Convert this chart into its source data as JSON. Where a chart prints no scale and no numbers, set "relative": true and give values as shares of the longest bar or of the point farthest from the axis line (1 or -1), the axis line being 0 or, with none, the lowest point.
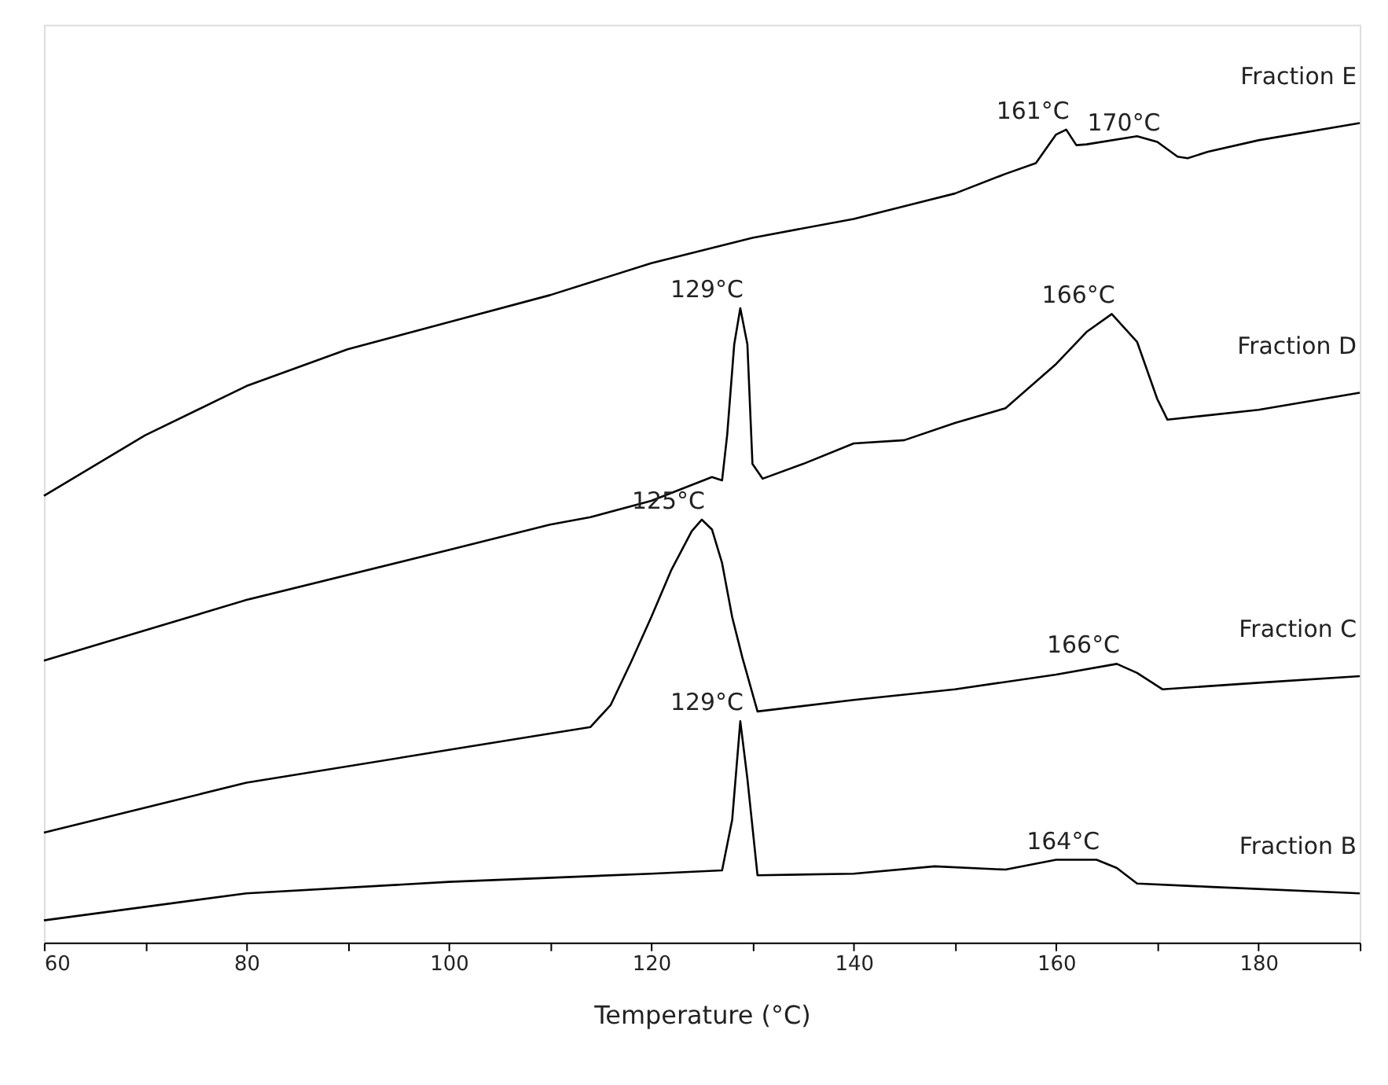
{
  "chart_data": {
    "type": "line",
    "relative": true,
    "xlabel": "Temperature (°C)",
    "xlim": [
      60,
      190
    ],
    "xticks": [
      60,
      {
        "value": 70,
        "label": null
      },
      80,
      {
        "value": 90,
        "label": null
      },
      100,
      {
        "value": 110,
        "label": null
      },
      120,
      {
        "value": 130,
        "label": null
      },
      140,
      {
        "value": 150,
        "label": null
      },
      160,
      {
        "value": 170,
        "label": null
      },
      180,
      {
        "value": 190,
        "label": null
      }
    ],
    "grid": false,
    "marker": "none",
    "line_style": "solid",
    "series": [
      {
        "name": "Fraction B",
        "color": "#000000",
        "x": [
          60,
          80,
          100,
          120,
          127,
          128,
          128.8,
          129.5,
          130.5,
          140,
          148,
          155,
          160,
          164,
          166,
          168,
          175,
          190
        ],
        "values": [
          0.027,
          0.06,
          0.074,
          0.084,
          0.088,
          0.15,
          0.27,
          0.2,
          0.082,
          0.084,
          0.093,
          0.089,
          0.101,
          0.101,
          0.091,
          0.072,
          0.068,
          0.06
        ]
      },
      {
        "name": "Fraction C",
        "color": "#000000",
        "x": [
          60,
          80,
          100,
          110,
          114,
          116,
          118,
          120,
          122,
          124,
          125,
          126,
          127,
          128,
          129,
          130.5,
          140,
          150,
          160,
          166,
          168,
          170.5,
          180,
          190
        ],
        "values": [
          0.134,
          0.195,
          0.235,
          0.255,
          0.263,
          0.29,
          0.342,
          0.397,
          0.455,
          0.502,
          0.516,
          0.504,
          0.463,
          0.397,
          0.348,
          0.282,
          0.296,
          0.309,
          0.327,
          0.34,
          0.329,
          0.309,
          0.317,
          0.325
        ]
      },
      {
        "name": "Fraction D",
        "color": "#000000",
        "x": [
          60,
          80,
          100,
          110,
          114,
          120,
          126,
          127,
          127.5,
          128.2,
          128.8,
          129.5,
          130,
          131,
          135,
          140,
          145,
          150,
          155,
          160,
          163,
          165.5,
          168,
          170,
          171,
          180,
          190
        ],
        "values": [
          0.344,
          0.418,
          0.479,
          0.51,
          0.519,
          0.539,
          0.568,
          0.564,
          0.619,
          0.73,
          0.774,
          0.73,
          0.584,
          0.566,
          0.584,
          0.609,
          0.613,
          0.634,
          0.652,
          0.706,
          0.745,
          0.767,
          0.733,
          0.663,
          0.638,
          0.65,
          0.671
        ]
      },
      {
        "name": "Fraction E",
        "color": "#000000",
        "x": [
          60,
          70,
          80,
          90,
          100,
          110,
          120,
          130,
          140,
          150,
          155,
          158,
          160,
          161,
          162,
          163,
          168,
          170,
          172,
          173,
          175,
          180,
          190
        ],
        "values": [
          0.545,
          0.619,
          0.679,
          0.724,
          0.757,
          0.79,
          0.829,
          0.86,
          0.883,
          0.914,
          0.938,
          0.951,
          0.986,
          0.992,
          0.973,
          0.974,
          0.984,
          0.977,
          0.959,
          0.957,
          0.965,
          0.979,
          1.0
        ]
      }
    ],
    "annotations": [
      {
        "text": "129°C",
        "x": 128.8,
        "y": 0.27
      },
      {
        "text": "164°C",
        "x": 164,
        "y": 0.101
      },
      {
        "text": "125°C",
        "x": 125,
        "y": 0.516
      },
      {
        "text": "166°C",
        "x": 166,
        "y": 0.34
      },
      {
        "text": "129°C",
        "x": 128.8,
        "y": 0.774
      },
      {
        "text": "166°C",
        "x": 165.5,
        "y": 0.767
      },
      {
        "text": "161°C",
        "x": 161,
        "y": 0.992
      },
      {
        "text": "170°C",
        "x": 170,
        "y": 0.977
      }
    ]
  }
}
